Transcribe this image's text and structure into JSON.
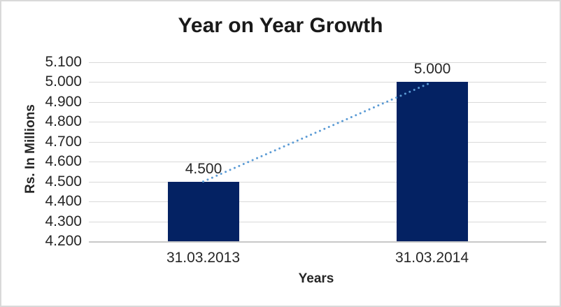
{
  "chart_data": {
    "type": "bar",
    "title": "Year on Year Growth",
    "xlabel": "Years",
    "ylabel": "Rs. In Millions",
    "categories": [
      "31.03.2013",
      "31.03.2014"
    ],
    "values": [
      4.5,
      5.0
    ],
    "data_labels": [
      "4.500",
      "5.000"
    ],
    "ylim": [
      4.2,
      5.1
    ],
    "y_step": 0.1,
    "y_tick_labels": [
      "5.100",
      "5.000",
      "4.900",
      "4.800",
      "4.700",
      "4.600",
      "4.500",
      "4.400",
      "4.300",
      "4.200"
    ],
    "grid": true,
    "legend": "none",
    "trendline": {
      "style": "dotted",
      "from_value": 4.5,
      "to_value": 5.0
    }
  },
  "colors": {
    "bar": "#042263",
    "trendline": "#5b9bd5",
    "gridline": "#d9d9d9",
    "axis_line": "#c8c8c8",
    "text": "#262626",
    "title_text": "#1a1a1a",
    "border": "#d9d9d9",
    "background": "#ffffff"
  }
}
